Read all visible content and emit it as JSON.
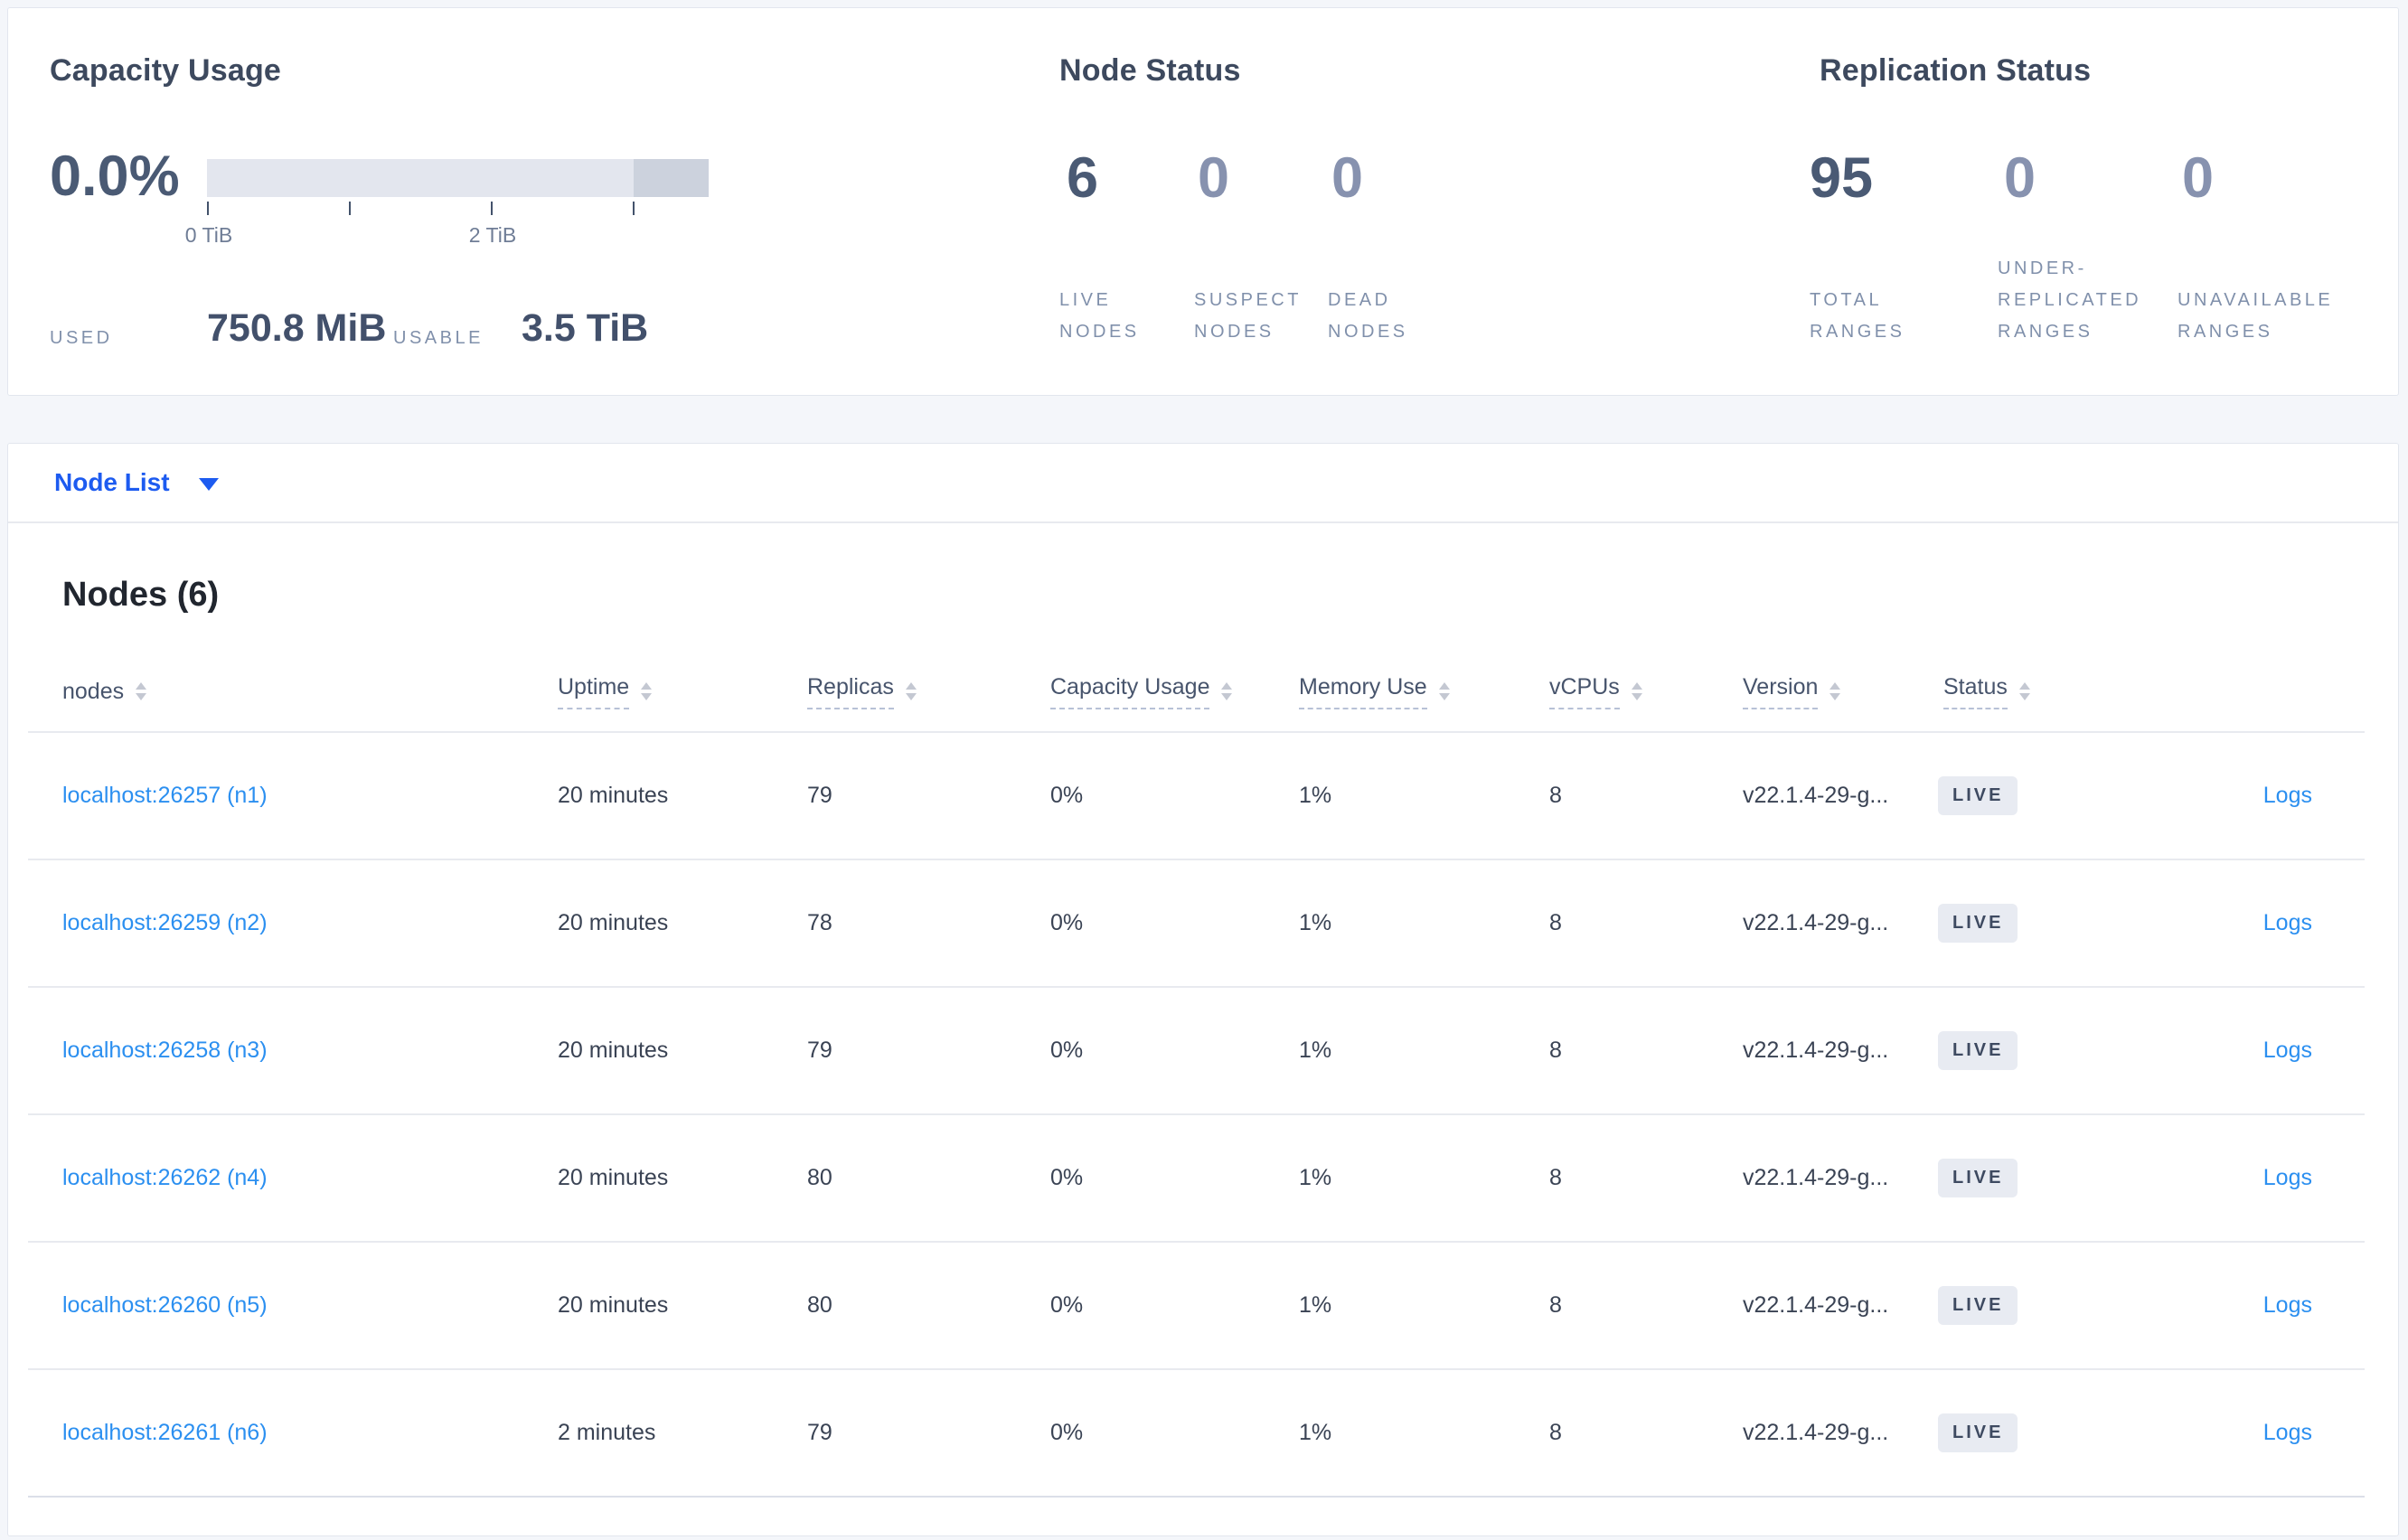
{
  "colors": {
    "page_background": "#f4f6fa",
    "card_background": "#ffffff",
    "dropdown_blue": "#1d5bf0",
    "link_blue": "#2b8ff0",
    "metric_primary": "#4a5a74",
    "metric_secondary": "#8792af",
    "badge_background": "#e8ebf2",
    "bar_light": "#e3e6ee",
    "bar_dark": "#ccd2dd"
  },
  "summary": {
    "capacity": {
      "title": "Capacity Usage",
      "percent": "0.0%",
      "ticks": [
        "0 TiB",
        "2 TiB"
      ],
      "used_label": "USED",
      "used_value": "750.8 MiB",
      "usable_label": "USABLE",
      "usable_value": "3.5 TiB"
    },
    "node_status": {
      "title": "Node Status",
      "metrics": [
        {
          "value": "6",
          "label": "LIVE NODES"
        },
        {
          "value": "0",
          "label": "SUSPECT NODES"
        },
        {
          "value": "0",
          "label": "DEAD NODES"
        }
      ]
    },
    "replication": {
      "title": "Replication Status",
      "metrics": [
        {
          "value": "95",
          "label": "TOTAL RANGES"
        },
        {
          "value": "0",
          "label": "UNDER-REPLICATED RANGES"
        },
        {
          "value": "0",
          "label": "UNAVAILABLE RANGES"
        }
      ]
    }
  },
  "node_list": {
    "dropdown_label": "Node List",
    "section_title": "Nodes (6)",
    "columns": {
      "nodes": "nodes",
      "uptime": "Uptime",
      "replicas": "Replicas",
      "capacity": "Capacity Usage",
      "memory": "Memory Use",
      "vcpus": "vCPUs",
      "version": "Version",
      "status": "Status"
    },
    "rows": [
      {
        "node": "localhost:26257 (n1)",
        "uptime": "20 minutes",
        "replicas": "79",
        "capacity": "0%",
        "memory": "1%",
        "vcpus": "8",
        "version": "v22.1.4-29-g...",
        "status": "LIVE",
        "logs": "Logs"
      },
      {
        "node": "localhost:26259 (n2)",
        "uptime": "20 minutes",
        "replicas": "78",
        "capacity": "0%",
        "memory": "1%",
        "vcpus": "8",
        "version": "v22.1.4-29-g...",
        "status": "LIVE",
        "logs": "Logs"
      },
      {
        "node": "localhost:26258 (n3)",
        "uptime": "20 minutes",
        "replicas": "79",
        "capacity": "0%",
        "memory": "1%",
        "vcpus": "8",
        "version": "v22.1.4-29-g...",
        "status": "LIVE",
        "logs": "Logs"
      },
      {
        "node": "localhost:26262 (n4)",
        "uptime": "20 minutes",
        "replicas": "80",
        "capacity": "0%",
        "memory": "1%",
        "vcpus": "8",
        "version": "v22.1.4-29-g...",
        "status": "LIVE",
        "logs": "Logs"
      },
      {
        "node": "localhost:26260 (n5)",
        "uptime": "20 minutes",
        "replicas": "80",
        "capacity": "0%",
        "memory": "1%",
        "vcpus": "8",
        "version": "v22.1.4-29-g...",
        "status": "LIVE",
        "logs": "Logs"
      },
      {
        "node": "localhost:26261 (n6)",
        "uptime": "2 minutes",
        "replicas": "79",
        "capacity": "0%",
        "memory": "1%",
        "vcpus": "8",
        "version": "v22.1.4-29-g...",
        "status": "LIVE",
        "logs": "Logs"
      }
    ]
  }
}
